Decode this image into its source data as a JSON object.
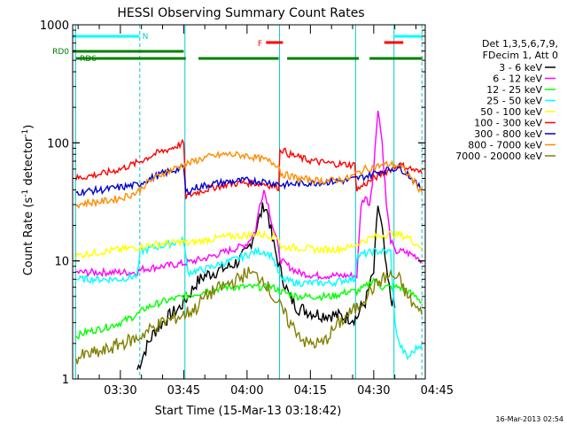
{
  "chart_data": {
    "type": "line",
    "title": "HESSI Observing Summary Count Rates",
    "xlabel": "Start Time (15-Mar-13 03:18:42)",
    "ylabel_main": "Count Rate (s",
    "ylabel_sup1": "-1",
    "ylabel_mid": " detector",
    "ylabel_sup2": "-1",
    "ylabel_end": ")",
    "yscale": "log",
    "ylim": [
      1,
      1000
    ],
    "x_ticks_min": [
      30,
      45,
      60,
      75,
      90,
      105
    ],
    "x_tick_labels": [
      "03:30",
      "03:45",
      "04:00",
      "04:15",
      "04:30",
      "04:45"
    ],
    "xlim_min": [
      18.7,
      102.2
    ],
    "y_tick_labels": [
      "1",
      "10",
      "100",
      "1000"
    ],
    "legend_header": [
      "Det 1,3,5,6,7,9,",
      "FDecim 1, Att 0"
    ],
    "timestamp": "16-Mar-2013 02:54",
    "flags": [
      {
        "name": "N",
        "color": "#00ffff",
        "segments": [
          [
            18.7,
            34.5
          ],
          [
            94.8,
            101.5
          ]
        ]
      },
      {
        "name": "F",
        "color": "#ff0000",
        "segments": [
          [
            64.5,
            68.5
          ],
          [
            92.5,
            97
          ]
        ]
      },
      {
        "name": "RD0",
        "color": "#008000",
        "segments": [
          [
            18.7,
            45
          ]
        ]
      },
      {
        "name": "RD6",
        "color": "#008000",
        "segments": [
          [
            19.5,
            45.5
          ],
          [
            48.5,
            67.5
          ],
          [
            69.5,
            86.5
          ],
          [
            89,
            101.5
          ]
        ]
      }
    ],
    "gaps_min": [
      19.4,
      34.6,
      45.3,
      67.7,
      85.7,
      94.8,
      101.4
    ],
    "series": [
      {
        "name": "3 - 6 keV",
        "color": "#000000",
        "points": [
          [
            34,
            1.2
          ],
          [
            36,
            1.8
          ],
          [
            38,
            2.5
          ],
          [
            40,
            3
          ],
          [
            42,
            3.5
          ],
          [
            44,
            4
          ],
          [
            46,
            5
          ],
          [
            48,
            6.5
          ],
          [
            50,
            7.5
          ],
          [
            52,
            8
          ],
          [
            54,
            8.5
          ],
          [
            56,
            9
          ],
          [
            58,
            10
          ],
          [
            60,
            12
          ],
          [
            62,
            18
          ],
          [
            64,
            30
          ],
          [
            65,
            25
          ],
          [
            66,
            15
          ],
          [
            68,
            8
          ],
          [
            70,
            5
          ],
          [
            72,
            4
          ],
          [
            74,
            3.8
          ],
          [
            76,
            3.6
          ],
          [
            78,
            3.5
          ],
          [
            80,
            3.5
          ],
          [
            82,
            3.4
          ],
          [
            84,
            3.3
          ],
          [
            86,
            3.3
          ],
          [
            87,
            4
          ],
          [
            88,
            4.5
          ],
          [
            89,
            6
          ],
          [
            90,
            8
          ],
          [
            91,
            30
          ],
          [
            92,
            18
          ],
          [
            93,
            8
          ],
          [
            94,
            5
          ],
          [
            95,
            4
          ]
        ]
      },
      {
        "name": "6 - 12 keV",
        "color": "#ff00ff",
        "points": [
          [
            19.5,
            8
          ],
          [
            22,
            8
          ],
          [
            26,
            8
          ],
          [
            30,
            8
          ],
          [
            34,
            8
          ],
          [
            35,
            8.5
          ],
          [
            40,
            9
          ],
          [
            45,
            9.5
          ],
          [
            50,
            10.5
          ],
          [
            55,
            12
          ],
          [
            58,
            13
          ],
          [
            60,
            14
          ],
          [
            62,
            18
          ],
          [
            63,
            30
          ],
          [
            64,
            40
          ],
          [
            65,
            30
          ],
          [
            66,
            20
          ],
          [
            67,
            15
          ],
          [
            68,
            10
          ],
          [
            72,
            8
          ],
          [
            76,
            7.5
          ],
          [
            80,
            7.5
          ],
          [
            84,
            7.5
          ],
          [
            86,
            7.5
          ],
          [
            87,
            30
          ],
          [
            88,
            35
          ],
          [
            89,
            30
          ],
          [
            90,
            60
          ],
          [
            91,
            200
          ],
          [
            92,
            100
          ],
          [
            93,
            30
          ],
          [
            94,
            15
          ],
          [
            95,
            12
          ],
          [
            97,
            12
          ],
          [
            100,
            11
          ],
          [
            101.4,
            10
          ]
        ]
      },
      {
        "name": "12 - 25 keV",
        "color": "#00ff00",
        "points": [
          [
            19.5,
            2.3
          ],
          [
            22,
            2.5
          ],
          [
            26,
            2.7
          ],
          [
            30,
            3
          ],
          [
            34,
            3.5
          ],
          [
            36,
            4
          ],
          [
            40,
            4.5
          ],
          [
            45,
            5
          ],
          [
            50,
            5.5
          ],
          [
            55,
            6
          ],
          [
            60,
            6
          ],
          [
            62,
            6
          ],
          [
            64,
            6
          ],
          [
            66,
            6
          ],
          [
            68,
            5.5
          ],
          [
            72,
            5
          ],
          [
            76,
            5
          ],
          [
            80,
            5
          ],
          [
            84,
            5.5
          ],
          [
            86,
            5.5
          ],
          [
            88,
            6
          ],
          [
            90,
            7
          ],
          [
            92,
            6
          ],
          [
            94,
            6
          ],
          [
            96,
            6
          ],
          [
            98,
            5.5
          ],
          [
            100,
            5
          ],
          [
            101.4,
            4.5
          ]
        ]
      },
      {
        "name": "25 - 50 keV",
        "color": "#00ffff",
        "points": [
          [
            19.5,
            7
          ],
          [
            22,
            7
          ],
          [
            26,
            7
          ],
          [
            30,
            7
          ],
          [
            34,
            7.5
          ],
          [
            34.7,
            12
          ],
          [
            38,
            13
          ],
          [
            42,
            14
          ],
          [
            45,
            15
          ],
          [
            46,
            8
          ],
          [
            50,
            8.5
          ],
          [
            54,
            9.5
          ],
          [
            58,
            10.5
          ],
          [
            62,
            12
          ],
          [
            64,
            12
          ],
          [
            66,
            11
          ],
          [
            68,
            7
          ],
          [
            72,
            6.5
          ],
          [
            76,
            6.5
          ],
          [
            80,
            6.5
          ],
          [
            84,
            7
          ],
          [
            85.5,
            7
          ],
          [
            86,
            11
          ],
          [
            90,
            12
          ],
          [
            94,
            12
          ],
          [
            95,
            3
          ],
          [
            96,
            2
          ],
          [
            98,
            1.5
          ],
          [
            100,
            1.8
          ],
          [
            101.4,
            2
          ]
        ]
      },
      {
        "name": "50 - 100 keV",
        "color": "#ffff00",
        "points": [
          [
            19.5,
            11
          ],
          [
            22,
            11.5
          ],
          [
            26,
            12
          ],
          [
            30,
            12.5
          ],
          [
            34,
            13
          ],
          [
            36,
            13.5
          ],
          [
            40,
            14
          ],
          [
            45,
            14.5
          ],
          [
            46,
            14
          ],
          [
            50,
            15
          ],
          [
            55,
            16
          ],
          [
            60,
            16.5
          ],
          [
            62,
            17
          ],
          [
            65,
            16.5
          ],
          [
            67.5,
            16
          ],
          [
            68,
            13
          ],
          [
            72,
            13
          ],
          [
            76,
            12.5
          ],
          [
            80,
            12.5
          ],
          [
            84,
            13
          ],
          [
            86,
            14
          ],
          [
            88,
            15
          ],
          [
            90,
            16
          ],
          [
            92,
            16.5
          ],
          [
            94,
            17
          ],
          [
            96,
            16.5
          ],
          [
            98,
            16
          ],
          [
            100,
            14
          ],
          [
            101.4,
            13
          ]
        ]
      },
      {
        "name": "100 - 300 keV",
        "color": "#ff0000",
        "points": [
          [
            19.5,
            50
          ],
          [
            22,
            52
          ],
          [
            26,
            55
          ],
          [
            30,
            60
          ],
          [
            34,
            68
          ],
          [
            38,
            80
          ],
          [
            42,
            90
          ],
          [
            45,
            100
          ],
          [
            45.5,
            35
          ],
          [
            48,
            38
          ],
          [
            52,
            42
          ],
          [
            56,
            45
          ],
          [
            60,
            46
          ],
          [
            64,
            45
          ],
          [
            67.5,
            42
          ],
          [
            67.8,
            90
          ],
          [
            70,
            80
          ],
          [
            74,
            72
          ],
          [
            78,
            68
          ],
          [
            82,
            66
          ],
          [
            85.5,
            65
          ],
          [
            86,
            40
          ],
          [
            88,
            45
          ],
          [
            90,
            50
          ],
          [
            92,
            55
          ],
          [
            94,
            60
          ],
          [
            96,
            65
          ],
          [
            98,
            62
          ],
          [
            100,
            58
          ],
          [
            101.4,
            55
          ]
        ]
      },
      {
        "name": "300 - 800 keV",
        "color": "#0000cd",
        "points": [
          [
            19.5,
            38
          ],
          [
            22,
            39
          ],
          [
            26,
            40
          ],
          [
            30,
            42
          ],
          [
            34,
            44
          ],
          [
            36,
            48
          ],
          [
            40,
            55
          ],
          [
            45,
            62
          ],
          [
            45.5,
            38
          ],
          [
            48,
            42
          ],
          [
            52,
            45
          ],
          [
            56,
            47
          ],
          [
            60,
            48
          ],
          [
            64,
            47
          ],
          [
            67.5,
            45
          ],
          [
            68,
            44
          ],
          [
            72,
            45
          ],
          [
            76,
            46
          ],
          [
            80,
            47
          ],
          [
            84,
            48
          ],
          [
            86,
            50
          ],
          [
            88,
            52
          ],
          [
            90,
            55
          ],
          [
            92,
            58
          ],
          [
            94,
            60
          ],
          [
            96,
            62
          ],
          [
            98,
            55
          ],
          [
            100,
            45
          ],
          [
            101.4,
            40
          ]
        ]
      },
      {
        "name": "800 - 7000 keV",
        "color": "#ff8c00",
        "points": [
          [
            19.5,
            30
          ],
          [
            22,
            31
          ],
          [
            26,
            32
          ],
          [
            30,
            34
          ],
          [
            34,
            38
          ],
          [
            36,
            45
          ],
          [
            40,
            55
          ],
          [
            45,
            65
          ],
          [
            50,
            75
          ],
          [
            55,
            80
          ],
          [
            60,
            78
          ],
          [
            64,
            72
          ],
          [
            67.5,
            65
          ],
          [
            68,
            55
          ],
          [
            72,
            50
          ],
          [
            76,
            48
          ],
          [
            80,
            48
          ],
          [
            84,
            50
          ],
          [
            86,
            55
          ],
          [
            88,
            60
          ],
          [
            90,
            62
          ],
          [
            92,
            65
          ],
          [
            94,
            66
          ],
          [
            96,
            64
          ],
          [
            98,
            55
          ],
          [
            100,
            45
          ],
          [
            101.4,
            38
          ]
        ]
      },
      {
        "name": "7000 - 20000 keV",
        "color": "#808000",
        "points": [
          [
            19.5,
            1.5
          ],
          [
            22,
            1.6
          ],
          [
            26,
            1.7
          ],
          [
            30,
            2
          ],
          [
            34,
            2.2
          ],
          [
            36,
            2.5
          ],
          [
            40,
            3
          ],
          [
            45,
            3.5
          ],
          [
            48,
            4
          ],
          [
            50,
            5
          ],
          [
            54,
            6
          ],
          [
            58,
            7
          ],
          [
            60,
            8
          ],
          [
            62,
            7.5
          ],
          [
            64,
            7
          ],
          [
            66,
            5
          ],
          [
            68,
            4
          ],
          [
            70,
            3
          ],
          [
            72,
            2.5
          ],
          [
            74,
            2
          ],
          [
            76,
            2
          ],
          [
            78,
            2
          ],
          [
            80,
            2.5
          ],
          [
            82,
            3
          ],
          [
            84,
            3.5
          ],
          [
            86,
            4
          ],
          [
            88,
            5
          ],
          [
            90,
            6
          ],
          [
            92,
            7
          ],
          [
            94,
            7.5
          ],
          [
            96,
            7
          ],
          [
            98,
            5
          ],
          [
            100,
            4
          ],
          [
            101.4,
            3.5
          ]
        ]
      }
    ]
  }
}
